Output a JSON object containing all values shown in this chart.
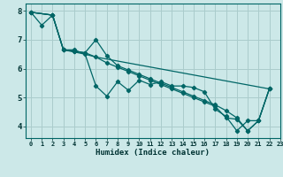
{
  "xlabel": "Humidex (Indice chaleur)",
  "bg_color": "#cce8e8",
  "grid_color": "#aacccc",
  "line_color": "#006666",
  "xlim": [
    -0.5,
    23
  ],
  "ylim": [
    3.6,
    8.25
  ],
  "xticks": [
    0,
    1,
    2,
    3,
    4,
    5,
    6,
    7,
    8,
    9,
    10,
    11,
    12,
    13,
    14,
    15,
    16,
    17,
    18,
    19,
    20,
    21,
    22,
    23
  ],
  "yticks": [
    4,
    5,
    6,
    7,
    8
  ],
  "line1_x": [
    0,
    1,
    2,
    3,
    4,
    5,
    6,
    7,
    8,
    9,
    10,
    11,
    12,
    13,
    14,
    15,
    16,
    17,
    18,
    19,
    20,
    21,
    22
  ],
  "line1_y": [
    7.95,
    7.5,
    7.85,
    6.65,
    6.65,
    6.5,
    5.4,
    5.05,
    5.55,
    5.25,
    5.6,
    5.45,
    5.55,
    5.4,
    5.4,
    5.35,
    5.2,
    4.6,
    4.35,
    3.85,
    4.2,
    4.2,
    5.3
  ],
  "line2_x": [
    0,
    2,
    3,
    5,
    6,
    22
  ],
  "line2_y": [
    7.95,
    7.85,
    6.65,
    6.5,
    6.4,
    5.3
  ],
  "line3_x": [
    0,
    2,
    3,
    4,
    5,
    6,
    7,
    8,
    9,
    10,
    11,
    12,
    13,
    14,
    15,
    16,
    17,
    18,
    19,
    20,
    21,
    22
  ],
  "line3_y": [
    7.95,
    7.85,
    6.65,
    6.6,
    6.55,
    7.0,
    6.45,
    6.1,
    5.95,
    5.8,
    5.65,
    5.5,
    5.35,
    5.2,
    5.05,
    4.9,
    4.75,
    4.55,
    4.3,
    3.85,
    4.2,
    5.3
  ],
  "line4_x": [
    0,
    2,
    3,
    4,
    5,
    6,
    7,
    8,
    9,
    10,
    11,
    12,
    13,
    14,
    15,
    16,
    17,
    18,
    19,
    20,
    21,
    22
  ],
  "line4_y": [
    7.95,
    7.85,
    6.65,
    6.6,
    6.55,
    6.4,
    6.2,
    6.05,
    5.9,
    5.75,
    5.6,
    5.45,
    5.3,
    5.15,
    5.0,
    4.85,
    4.7,
    4.3,
    4.25,
    3.85,
    4.2,
    5.3
  ]
}
